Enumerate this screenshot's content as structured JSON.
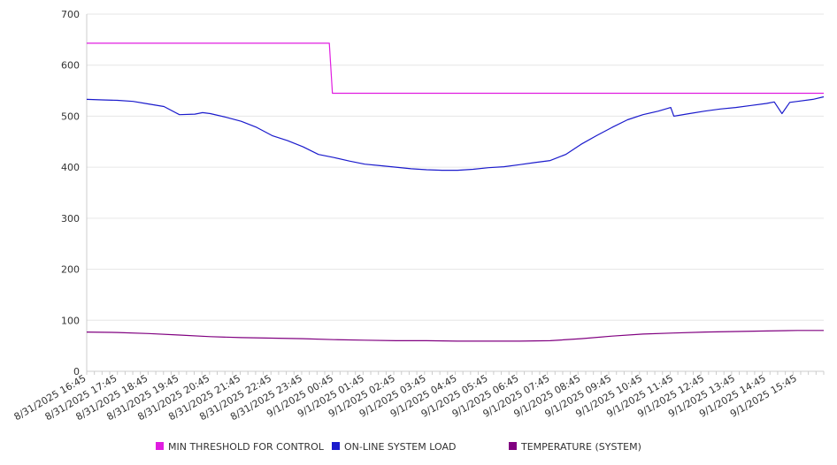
{
  "chart_data": {
    "type": "line",
    "title": "",
    "xlabel": "",
    "ylabel": "",
    "ylim": [
      0,
      700
    ],
    "y_ticks": [
      0,
      100,
      200,
      300,
      400,
      500,
      600,
      700
    ],
    "x_tick_labels": [
      "8/31/2025 16:45",
      "8/31/2025 17:45",
      "8/31/2025 18:45",
      "8/31/2025 19:45",
      "8/31/2025 20:45",
      "8/31/2025 21:45",
      "8/31/2025 22:45",
      "8/31/2025 23:45",
      "9/1/2025 00:45",
      "9/1/2025 01:45",
      "9/1/2025 02:45",
      "9/1/2025 03:45",
      "9/1/2025 04:45",
      "9/1/2025 05:45",
      "9/1/2025 06:45",
      "9/1/2025 07:45",
      "9/1/2025 08:45",
      "9/1/2025 09:45",
      "9/1/2025 10:45",
      "9/1/2025 11:45",
      "9/1/2025 12:45",
      "9/1/2025 13:45",
      "9/1/2025 14:45",
      "9/1/2025 15:45"
    ],
    "x_range_hours": [
      0,
      23.85
    ],
    "grid": "horizontal",
    "legend_position": "bottom",
    "series": [
      {
        "name": "MIN THRESHOLD FOR CONTROL",
        "color": "#e01de0",
        "points": [
          [
            0,
            643
          ],
          [
            7.85,
            643
          ],
          [
            7.95,
            545
          ],
          [
            23.85,
            545
          ]
        ]
      },
      {
        "name": "ON-LINE SYSTEM LOAD",
        "color": "#1a1acc",
        "points": [
          [
            0,
            533
          ],
          [
            0.5,
            532
          ],
          [
            1,
            531
          ],
          [
            1.5,
            529
          ],
          [
            2,
            524
          ],
          [
            2.5,
            519
          ],
          [
            3,
            503
          ],
          [
            3.5,
            504
          ],
          [
            3.75,
            507
          ],
          [
            4,
            505
          ],
          [
            4.5,
            498
          ],
          [
            5,
            490
          ],
          [
            5.5,
            478
          ],
          [
            6,
            462
          ],
          [
            6.5,
            452
          ],
          [
            7,
            440
          ],
          [
            7.5,
            425
          ],
          [
            8,
            419
          ],
          [
            8.5,
            412
          ],
          [
            9,
            406
          ],
          [
            9.5,
            403
          ],
          [
            10,
            400
          ],
          [
            10.5,
            397
          ],
          [
            11,
            395
          ],
          [
            11.5,
            394
          ],
          [
            12,
            394
          ],
          [
            12.5,
            396
          ],
          [
            13,
            399
          ],
          [
            13.5,
            401
          ],
          [
            14,
            405
          ],
          [
            14.5,
            409
          ],
          [
            15,
            413
          ],
          [
            15.5,
            425
          ],
          [
            16,
            445
          ],
          [
            16.5,
            462
          ],
          [
            17,
            478
          ],
          [
            17.5,
            493
          ],
          [
            18,
            503
          ],
          [
            18.5,
            510
          ],
          [
            18.9,
            517
          ],
          [
            19,
            500
          ],
          [
            19.5,
            505
          ],
          [
            20,
            510
          ],
          [
            20.5,
            514
          ],
          [
            21,
            517
          ],
          [
            21.5,
            521
          ],
          [
            22,
            525
          ],
          [
            22.25,
            528
          ],
          [
            22.5,
            505
          ],
          [
            22.75,
            527
          ],
          [
            23,
            529
          ],
          [
            23.5,
            533
          ],
          [
            23.85,
            538
          ]
        ]
      },
      {
        "name": "TEMPERATURE (SYSTEM)",
        "color": "#800080",
        "points": [
          [
            0,
            77
          ],
          [
            1,
            76
          ],
          [
            2,
            74
          ],
          [
            3,
            71
          ],
          [
            4,
            68
          ],
          [
            5,
            66
          ],
          [
            6,
            65
          ],
          [
            7,
            64
          ],
          [
            8,
            62
          ],
          [
            9,
            61
          ],
          [
            10,
            60
          ],
          [
            11,
            60
          ],
          [
            12,
            59
          ],
          [
            13,
            59
          ],
          [
            14,
            59
          ],
          [
            15,
            60
          ],
          [
            16,
            64
          ],
          [
            17,
            69
          ],
          [
            18,
            73
          ],
          [
            19,
            75
          ],
          [
            20,
            77
          ],
          [
            21,
            78
          ],
          [
            22,
            79
          ],
          [
            23,
            80
          ],
          [
            23.85,
            80
          ]
        ]
      }
    ]
  }
}
